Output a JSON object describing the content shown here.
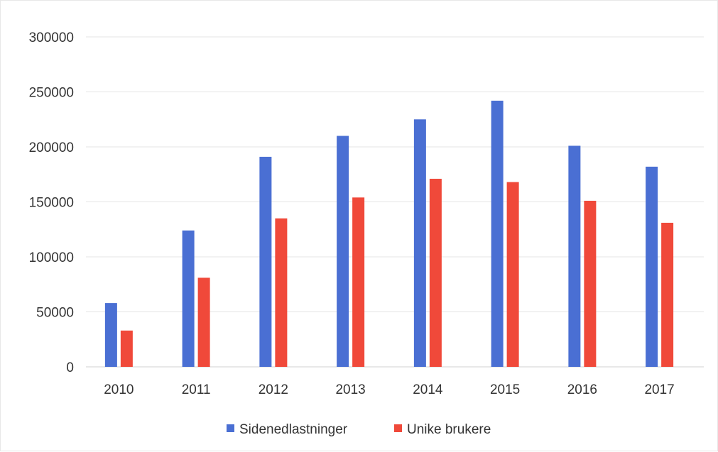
{
  "chart_data": {
    "type": "bar",
    "categories": [
      "2010",
      "2011",
      "2012",
      "2013",
      "2014",
      "2015",
      "2016",
      "2017"
    ],
    "series": [
      {
        "name": "Sidenedlastninger",
        "color": "#4a6fd3",
        "values": [
          58000,
          124000,
          191000,
          210000,
          225000,
          242000,
          201000,
          182000
        ]
      },
      {
        "name": "Unike brukere",
        "color": "#f0493a",
        "values": [
          33000,
          81000,
          135000,
          154000,
          171000,
          168000,
          151000,
          131000
        ]
      }
    ],
    "y_ticks": [
      "0",
      "50000",
      "100000",
      "150000",
      "200000",
      "250000",
      "300000"
    ],
    "ylim": [
      0,
      300000
    ],
    "grid": true,
    "legend_position": "bottom",
    "title": "",
    "xlabel": "",
    "ylabel": ""
  }
}
